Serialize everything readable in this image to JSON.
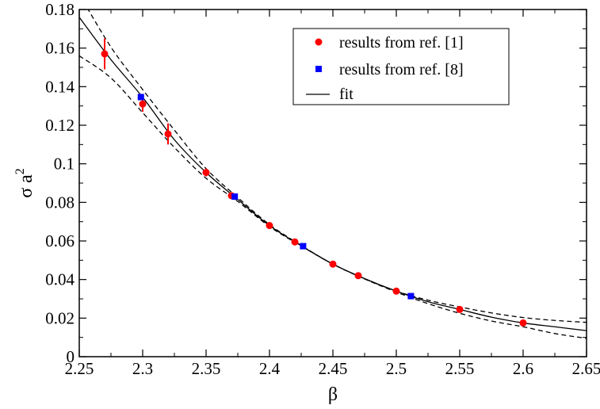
{
  "chart_data": {
    "type": "scatter",
    "xlabel": "β",
    "ylabel_base": "σ a",
    "ylabel_sup": "2",
    "xlim": [
      2.25,
      2.65
    ],
    "ylim": [
      0,
      0.18
    ],
    "xticks": [
      2.25,
      2.3,
      2.35,
      2.4,
      2.45,
      2.5,
      2.55,
      2.6,
      2.65
    ],
    "yticks": [
      0,
      0.02,
      0.04,
      0.06,
      0.08,
      0.1,
      0.12,
      0.14,
      0.16,
      0.18
    ],
    "xtick_labels": [
      "2.25",
      "2.3",
      "2.35",
      "2.4",
      "2.45",
      "2.5",
      "2.55",
      "2.6",
      "2.65"
    ],
    "ytick_labels": [
      "0",
      "0.02",
      "0.04",
      "0.06",
      "0.08",
      "0.1",
      "0.12",
      "0.14",
      "0.16",
      "0.18"
    ],
    "grid": false,
    "legend_position": "top-right",
    "series": [
      {
        "name": "results from ref. [1]",
        "marker": "circle",
        "color": "#ff0000",
        "points": [
          {
            "x": 2.27,
            "y": 0.157,
            "err": 0.008
          },
          {
            "x": 2.3,
            "y": 0.131,
            "err": 0.004
          },
          {
            "x": 2.32,
            "y": 0.1155,
            "err": 0.0055
          },
          {
            "x": 2.35,
            "y": 0.0955,
            "err": 0.002
          },
          {
            "x": 2.37,
            "y": 0.0835,
            "err": 0.0008
          },
          {
            "x": 2.4,
            "y": 0.068,
            "err": 0.0005
          },
          {
            "x": 2.42,
            "y": 0.0595,
            "err": 0.0005
          },
          {
            "x": 2.45,
            "y": 0.048,
            "err": 0.0004
          },
          {
            "x": 2.47,
            "y": 0.042,
            "err": 0.0004
          },
          {
            "x": 2.5,
            "y": 0.034,
            "err": 0.0003
          },
          {
            "x": 2.55,
            "y": 0.0245,
            "err": 0.0003
          },
          {
            "x": 2.6,
            "y": 0.0175,
            "err": 0.0003
          }
        ]
      },
      {
        "name": "results from ref. [8]",
        "marker": "square",
        "color": "#0000ff",
        "points": [
          {
            "x": 2.2986,
            "y": 0.1346
          },
          {
            "x": 2.3726,
            "y": 0.083
          },
          {
            "x": 2.4265,
            "y": 0.0573
          },
          {
            "x": 2.5115,
            "y": 0.0314
          }
        ]
      }
    ],
    "fit": {
      "name": "fit",
      "color": "#000000",
      "x": [
        2.25,
        2.275,
        2.3,
        2.325,
        2.35,
        2.375,
        2.4,
        2.425,
        2.45,
        2.475,
        2.5,
        2.525,
        2.55,
        2.575,
        2.6,
        2.625,
        2.65
      ],
      "center": [
        0.176,
        0.154,
        0.1345,
        0.1125,
        0.0955,
        0.0815,
        0.068,
        0.0575,
        0.048,
        0.0405,
        0.034,
        0.0285,
        0.0245,
        0.0205,
        0.0175,
        0.0155,
        0.0135
      ],
      "upper": [
        0.188,
        0.1605,
        0.1385,
        0.1175,
        0.0975,
        0.0825,
        0.0685,
        0.0577,
        0.048,
        0.0404,
        0.034,
        0.0293,
        0.0258,
        0.0227,
        0.0203,
        0.0188,
        0.0178
      ],
      "lower": [
        0.156,
        0.1445,
        0.1265,
        0.1085,
        0.0925,
        0.0805,
        0.0675,
        0.0574,
        0.048,
        0.0403,
        0.0335,
        0.0275,
        0.0225,
        0.0185,
        0.0155,
        0.012,
        0.0095
      ]
    }
  }
}
